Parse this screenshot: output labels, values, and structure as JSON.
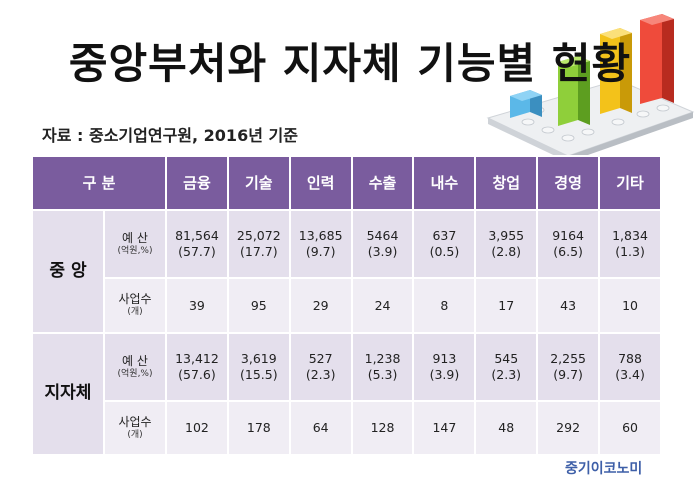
{
  "title": "중앙부처와 지자체 기능별 현황",
  "source": "자료 : 중소기업연구원, 2016년 기준",
  "header": {
    "category": "구 분",
    "columns": [
      "금융",
      "기술",
      "인력",
      "수출",
      "내수",
      "창업",
      "경영",
      "기타"
    ]
  },
  "groups": [
    {
      "name": "중 앙",
      "budget_label": "예 산",
      "budget_unit": "(억원,%)",
      "budget": [
        {
          "amount": "81,564",
          "pct": "(57.7)"
        },
        {
          "amount": "25,072",
          "pct": "(17.7)"
        },
        {
          "amount": "13,685",
          "pct": "(9.7)"
        },
        {
          "amount": "5464",
          "pct": "(3.9)"
        },
        {
          "amount": "637",
          "pct": "(0.5)"
        },
        {
          "amount": "3,955",
          "pct": "(2.8)"
        },
        {
          "amount": "9164",
          "pct": "(6.5)"
        },
        {
          "amount": "1,834",
          "pct": "(1.3)"
        }
      ],
      "count_label": "사업수",
      "count_unit": "(개)",
      "counts": [
        "39",
        "95",
        "29",
        "24",
        "8",
        "17",
        "43",
        "10"
      ]
    },
    {
      "name": "지자체",
      "budget_label": "예 산",
      "budget_unit": "(억원,%)",
      "budget": [
        {
          "amount": "13,412",
          "pct": "(57.6)"
        },
        {
          "amount": "3,619",
          "pct": "(15.5)"
        },
        {
          "amount": "527",
          "pct": "(2.3)"
        },
        {
          "amount": "1,238",
          "pct": "(5.3)"
        },
        {
          "amount": "913",
          "pct": "(3.9)"
        },
        {
          "amount": "545",
          "pct": "(2.3)"
        },
        {
          "amount": "2,255",
          "pct": "(9.7)"
        },
        {
          "amount": "788",
          "pct": "(3.4)"
        }
      ],
      "count_label": "사업수",
      "count_unit": "(개)",
      "counts": [
        "102",
        "178",
        "64",
        "128",
        "147",
        "48",
        "292",
        "60"
      ]
    }
  ],
  "logo": "중기이코노미",
  "decoration": "lego-bar-chart-illustration"
}
